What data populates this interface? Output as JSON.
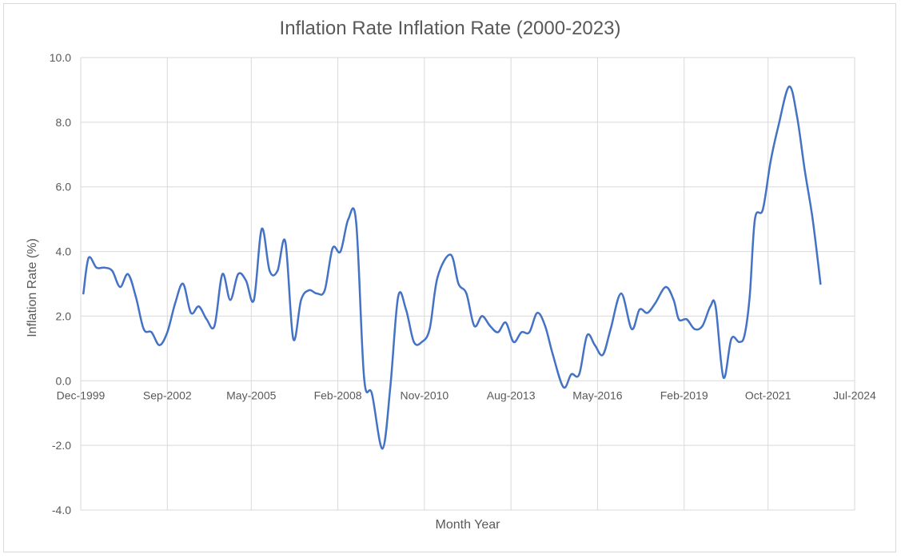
{
  "chart_data": {
    "type": "line",
    "title": "Inflation Rate Inflation Rate (2000-2023)",
    "xlabel": "Month Year",
    "ylabel": "Inflation Rate (%)",
    "ylim": [
      -4.0,
      10.0
    ],
    "yticks": [
      "-4.0",
      "-2.0",
      "0.0",
      "2.0",
      "4.0",
      "6.0",
      "8.0",
      "10.0"
    ],
    "xlim": [
      "1999-12",
      "2024-07"
    ],
    "xticks": [
      "Dec-1999",
      "Sep-2002",
      "May-2005",
      "Feb-2008",
      "Nov-2010",
      "Aug-2013",
      "May-2016",
      "Feb-2019",
      "Oct-2021",
      "Jul-2024"
    ],
    "xtick_dates": [
      "1999-12",
      "2002-09",
      "2005-05",
      "2008-02",
      "2010-11",
      "2013-08",
      "2016-05",
      "2019-02",
      "2021-10",
      "2024-07"
    ],
    "grid": true,
    "line_color": "#4472c4",
    "series": [
      {
        "x": [
          "2000-01",
          "2000-03",
          "2000-06",
          "2000-09",
          "2000-12",
          "2001-03",
          "2001-06",
          "2001-09",
          "2001-12",
          "2002-03",
          "2002-06",
          "2002-09",
          "2002-12",
          "2003-03",
          "2003-06",
          "2003-09",
          "2003-12",
          "2004-03",
          "2004-06",
          "2004-09",
          "2004-12",
          "2005-03",
          "2005-06",
          "2005-09",
          "2005-12",
          "2006-03",
          "2006-06",
          "2006-09",
          "2006-12",
          "2007-03",
          "2007-06",
          "2007-09",
          "2007-12",
          "2008-03",
          "2008-06",
          "2008-09",
          "2008-12",
          "2009-03",
          "2009-07",
          "2009-10",
          "2010-01",
          "2010-04",
          "2010-07",
          "2010-10",
          "2011-01",
          "2011-04",
          "2011-09",
          "2011-12",
          "2012-03",
          "2012-06",
          "2012-09",
          "2012-12",
          "2013-03",
          "2013-06",
          "2013-09",
          "2013-12",
          "2014-03",
          "2014-06",
          "2014-09",
          "2014-12",
          "2015-04",
          "2015-07",
          "2015-10",
          "2016-01",
          "2016-04",
          "2016-07",
          "2016-10",
          "2017-02",
          "2017-06",
          "2017-09",
          "2017-12",
          "2018-03",
          "2018-07",
          "2018-10",
          "2018-12",
          "2019-03",
          "2019-06",
          "2019-09",
          "2019-12",
          "2020-02",
          "2020-05",
          "2020-08",
          "2020-11",
          "2021-01",
          "2021-03",
          "2021-05",
          "2021-08",
          "2021-11",
          "2022-02",
          "2022-06",
          "2022-09",
          "2022-12",
          "2023-03",
          "2023-06"
        ],
        "y": [
          2.7,
          3.8,
          3.5,
          3.5,
          3.4,
          2.9,
          3.3,
          2.6,
          1.6,
          1.5,
          1.1,
          1.5,
          2.4,
          3.0,
          2.1,
          2.3,
          1.9,
          1.7,
          3.3,
          2.5,
          3.3,
          3.1,
          2.5,
          4.7,
          3.4,
          3.4,
          4.3,
          1.3,
          2.5,
          2.8,
          2.7,
          2.8,
          4.1,
          4.0,
          5.0,
          4.9,
          0.1,
          -0.4,
          -2.1,
          -0.2,
          2.6,
          2.2,
          1.2,
          1.2,
          1.6,
          3.2,
          3.9,
          3.0,
          2.7,
          1.7,
          2.0,
          1.7,
          1.5,
          1.8,
          1.2,
          1.5,
          1.5,
          2.1,
          1.7,
          0.8,
          -0.2,
          0.2,
          0.2,
          1.4,
          1.1,
          0.8,
          1.6,
          2.7,
          1.6,
          2.2,
          2.1,
          2.4,
          2.9,
          2.5,
          1.9,
          1.9,
          1.6,
          1.7,
          2.3,
          2.3,
          0.1,
          1.3,
          1.2,
          1.4,
          2.6,
          5.0,
          5.3,
          6.8,
          7.9,
          9.1,
          8.2,
          6.5,
          5.0,
          3.0
        ]
      }
    ]
  }
}
